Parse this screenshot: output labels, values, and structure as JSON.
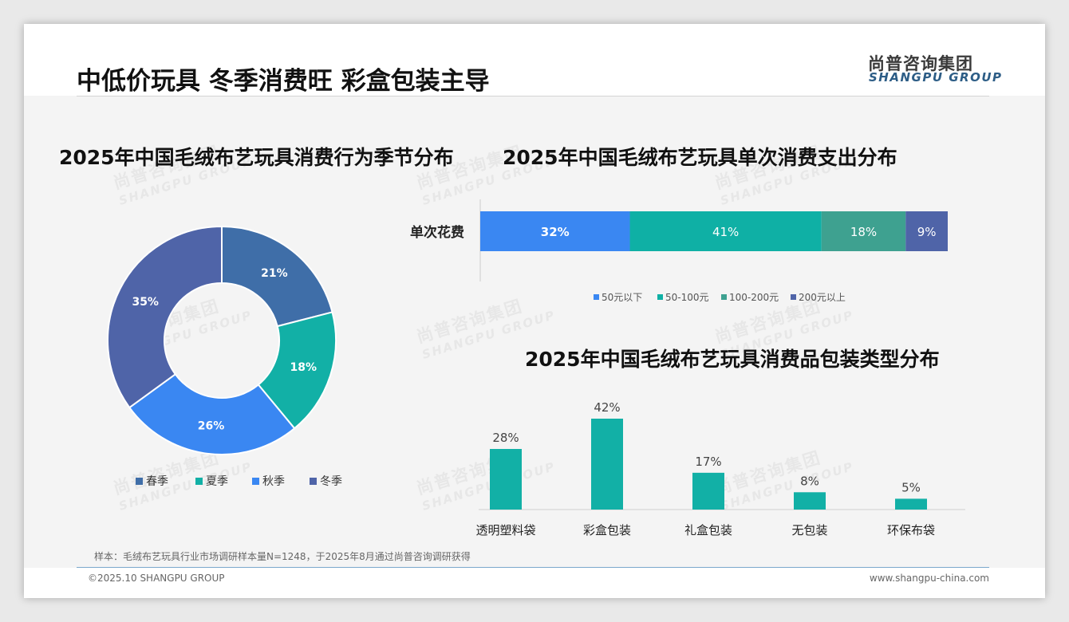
{
  "header": {
    "title": "中低价玩具 冬季消费旺 彩盒包装主导",
    "logo_cn": "尚普咨询集团",
    "logo_en": "SHANGPU GROUP"
  },
  "watermark": {
    "cn": "尚普咨询集团",
    "en": "SHANGPU GROUP"
  },
  "chart_data": [
    {
      "type": "pie",
      "variant": "donut",
      "title": "2025年中国毛绒布艺玩具消费行为季节分布",
      "categories": [
        "春季",
        "夏季",
        "秋季",
        "冬季"
      ],
      "values": [
        21,
        18,
        26,
        35
      ],
      "labels": [
        "21%",
        "18%",
        "26%",
        "35%"
      ],
      "colors": [
        "#3f6ea8",
        "#12b0a6",
        "#3a87f2",
        "#4f64a8"
      ],
      "legend": "bottom"
    },
    {
      "type": "bar",
      "variant": "stacked-horizontal-100",
      "title": "2025年中国毛绒布艺玩具单次消费支出分布",
      "categories": [
        "单次花费"
      ],
      "series": [
        {
          "name": "50元以下",
          "values": [
            32
          ],
          "label": "32%",
          "color": "#3a87f2"
        },
        {
          "name": "50-100元",
          "values": [
            41
          ],
          "label": "41%",
          "color": "#0fb0a5"
        },
        {
          "name": "100-200元",
          "values": [
            18
          ],
          "label": "18%",
          "color": "#3ea190"
        },
        {
          "name": "200元以上",
          "values": [
            9
          ],
          "label": "9%",
          "color": "#4f64a8"
        }
      ],
      "legend": "bottom"
    },
    {
      "type": "bar",
      "title": "2025年中国毛绒布艺玩具消费品包装类型分布",
      "categories": [
        "透明塑料袋",
        "彩盒包装",
        "礼盒包装",
        "无包装",
        "环保布袋"
      ],
      "values": [
        28,
        42,
        17,
        8,
        5
      ],
      "labels": [
        "28%",
        "42%",
        "17%",
        "8%",
        "5%"
      ],
      "color": "#12b0a6",
      "ylim": [
        0,
        42
      ]
    }
  ],
  "footer": {
    "note": "样本：毛绒布艺玩具行业市场调研样本量N=1248，于2025年8月通过尚普咨询调研获得",
    "copyright": "©2025.10 SHANGPU GROUP",
    "website": "www.shangpu-china.com"
  }
}
